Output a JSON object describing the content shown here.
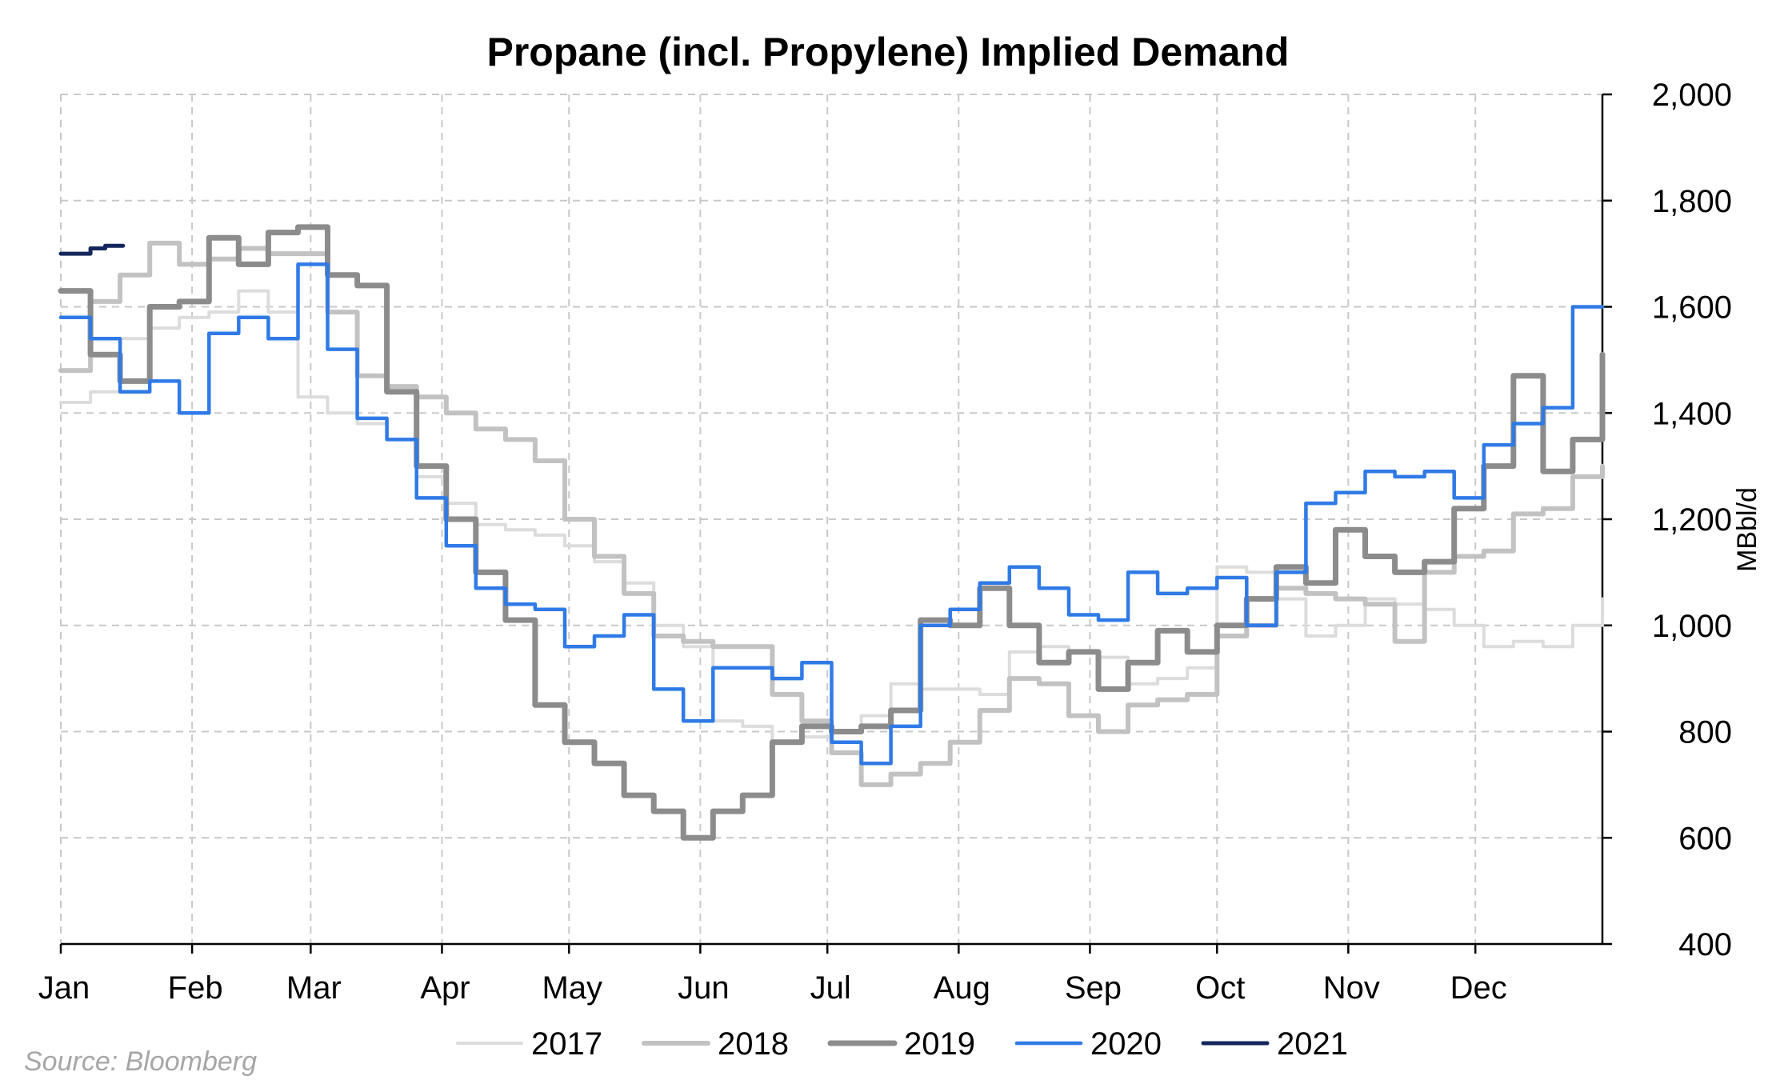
{
  "chart_data": {
    "type": "line",
    "title": "Propane (incl. Propylene) Implied Demand",
    "xlabel": "",
    "ylabel": "MBbl/d",
    "ylim": [
      400,
      2000
    ],
    "yticks": [
      400,
      600,
      800,
      1000,
      1200,
      1400,
      1600,
      1800,
      2000
    ],
    "ytick_labels": [
      "400",
      "600",
      "800",
      "1,000",
      "1,200",
      "1,400",
      "1,600",
      "1,800",
      "2,000"
    ],
    "y_axis_side": "right",
    "xlim": [
      1,
      53
    ],
    "x_unit": "week of year",
    "months": [
      "Jan",
      "Feb",
      "Mar",
      "Apr",
      "May",
      "Jun",
      "Jul",
      "Aug",
      "Sep",
      "Oct",
      "Nov",
      "Dec"
    ],
    "grid": true,
    "legend_position": "bottom",
    "source": "Source: Bloomberg",
    "series": [
      {
        "name": "2017",
        "color": "#dcdcdc",
        "width": 4,
        "x": [
          1,
          2,
          3,
          4,
          5,
          6,
          7,
          8,
          9,
          10,
          11,
          12,
          13,
          14,
          15,
          16,
          17,
          18,
          19,
          20,
          21,
          22,
          23,
          24,
          25,
          26,
          27,
          28,
          29,
          30,
          31,
          32,
          33,
          34,
          35,
          36,
          37,
          38,
          39,
          40,
          41,
          42,
          43,
          44,
          45,
          46,
          47,
          48,
          49,
          50,
          51,
          52,
          53
        ],
        "y": [
          1420,
          1440,
          1540,
          1560,
          1580,
          1590,
          1630,
          1590,
          1430,
          1400,
          1380,
          1350,
          1280,
          1230,
          1190,
          1180,
          1170,
          1150,
          1120,
          1080,
          1000,
          960,
          820,
          810,
          780,
          790,
          800,
          830,
          890,
          880,
          880,
          870,
          950,
          960,
          950,
          940,
          890,
          900,
          920,
          1110,
          1100,
          1050,
          980,
          1000,
          1050,
          1040,
          1030,
          1000,
          960,
          970,
          960,
          1000,
          1050
        ]
      },
      {
        "name": "2018",
        "color": "#c2c2c2",
        "width": 6,
        "x": [
          1,
          2,
          3,
          4,
          5,
          6,
          7,
          8,
          9,
          10,
          11,
          12,
          13,
          14,
          15,
          16,
          17,
          18,
          19,
          20,
          21,
          22,
          23,
          24,
          25,
          26,
          27,
          28,
          29,
          30,
          31,
          32,
          33,
          34,
          35,
          36,
          37,
          38,
          39,
          40,
          41,
          42,
          43,
          44,
          45,
          46,
          47,
          48,
          49,
          50,
          51,
          52,
          53
        ],
        "y": [
          1480,
          1610,
          1660,
          1720,
          1680,
          1690,
          1710,
          1700,
          1700,
          1590,
          1470,
          1450,
          1430,
          1400,
          1370,
          1350,
          1310,
          1200,
          1130,
          1060,
          980,
          970,
          960,
          960,
          870,
          820,
          760,
          700,
          720,
          740,
          780,
          840,
          900,
          890,
          830,
          800,
          850,
          860,
          870,
          980,
          1000,
          1070,
          1060,
          1050,
          1040,
          970,
          1100,
          1130,
          1140,
          1210,
          1220,
          1280,
          1300
        ]
      },
      {
        "name": "2019",
        "color": "#8c8c8c",
        "width": 7,
        "x": [
          1,
          2,
          3,
          4,
          5,
          6,
          7,
          8,
          9,
          10,
          11,
          12,
          13,
          14,
          15,
          16,
          17,
          18,
          19,
          20,
          21,
          22,
          23,
          24,
          25,
          26,
          27,
          28,
          29,
          30,
          31,
          32,
          33,
          34,
          35,
          36,
          37,
          38,
          39,
          40,
          41,
          42,
          43,
          44,
          45,
          46,
          47,
          48,
          49,
          50,
          51,
          52,
          53
        ],
        "y": [
          1630,
          1510,
          1460,
          1600,
          1610,
          1730,
          1680,
          1740,
          1750,
          1660,
          1640,
          1440,
          1300,
          1200,
          1100,
          1010,
          850,
          780,
          740,
          680,
          650,
          600,
          650,
          680,
          780,
          810,
          800,
          810,
          840,
          1010,
          1000,
          1070,
          1000,
          930,
          950,
          880,
          930,
          990,
          950,
          1000,
          1050,
          1110,
          1080,
          1180,
          1130,
          1100,
          1120,
          1220,
          1300,
          1470,
          1290,
          1350,
          1510
        ]
      },
      {
        "name": "2020",
        "color": "#2f7ae6",
        "width": 4.5,
        "x": [
          1,
          2,
          3,
          4,
          5,
          6,
          7,
          8,
          9,
          10,
          11,
          12,
          13,
          14,
          15,
          16,
          17,
          18,
          19,
          20,
          21,
          22,
          23,
          24,
          25,
          26,
          27,
          28,
          29,
          30,
          31,
          32,
          33,
          34,
          35,
          36,
          37,
          38,
          39,
          40,
          41,
          42,
          43,
          44,
          45,
          46,
          47,
          48,
          49,
          50,
          51,
          52,
          53
        ],
        "y": [
          1580,
          1540,
          1440,
          1460,
          1400,
          1550,
          1580,
          1540,
          1680,
          1520,
          1390,
          1350,
          1240,
          1150,
          1070,
          1040,
          1030,
          960,
          980,
          1020,
          880,
          820,
          920,
          920,
          900,
          930,
          780,
          740,
          810,
          1000,
          1030,
          1080,
          1110,
          1070,
          1020,
          1010,
          1100,
          1060,
          1070,
          1090,
          1000,
          1100,
          1230,
          1250,
          1290,
          1280,
          1290,
          1240,
          1340,
          1380,
          1410,
          1600,
          1600
        ]
      },
      {
        "name": "2021",
        "color": "#14275c",
        "width": 5,
        "x": [
          1,
          1.5,
          2,
          2.5
        ],
        "y": [
          1700,
          1700,
          1710,
          1715
        ]
      }
    ]
  }
}
